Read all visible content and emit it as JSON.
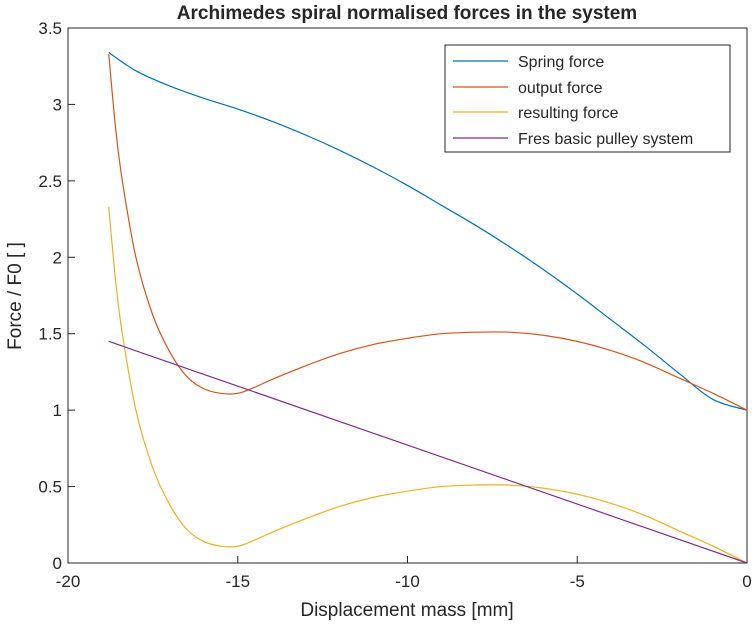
{
  "chart_data": {
    "type": "line",
    "title": "Archimedes spiral normalised forces in the system",
    "xlabel": "Displacement mass [mm]",
    "ylabel": "Force / F0 [ ]",
    "xlim": [
      -20,
      0
    ],
    "ylim": [
      0,
      3.5
    ],
    "xticks": [
      -20,
      -15,
      -10,
      -5,
      0
    ],
    "yticks": [
      0,
      0.5,
      1,
      1.5,
      2,
      2.5,
      3,
      3.5
    ],
    "xtick_labels": [
      "-20",
      "-15",
      "-10",
      "-5",
      "0"
    ],
    "ytick_labels": [
      "0",
      "0.5",
      "1",
      "1.5",
      "2",
      "2.5",
      "3",
      "3.5"
    ],
    "grid": false,
    "legend": "top-right",
    "series": [
      {
        "name": "Spring force",
        "color": "#0072BD",
        "x": [
          -18.8,
          -18.0,
          -17.0,
          -16.0,
          -15.0,
          -14.0,
          -13.0,
          -12.0,
          -11.0,
          -10.0,
          -9.0,
          -8.0,
          -7.0,
          -6.0,
          -5.0,
          -4.0,
          -3.0,
          -2.0,
          -1.0,
          0.0
        ],
        "y": [
          3.34,
          3.22,
          3.12,
          3.04,
          2.97,
          2.89,
          2.8,
          2.7,
          2.59,
          2.47,
          2.34,
          2.21,
          2.07,
          1.92,
          1.76,
          1.59,
          1.42,
          1.24,
          1.07,
          1.0
        ]
      },
      {
        "name": "output force",
        "color": "#D95319",
        "x": [
          -18.8,
          -18.6,
          -18.4,
          -18.0,
          -17.5,
          -17.0,
          -16.5,
          -16.0,
          -15.5,
          -15.0,
          -14.5,
          -14.0,
          -13.0,
          -12.0,
          -11.0,
          -10.0,
          -9.0,
          -8.0,
          -7.0,
          -6.0,
          -5.0,
          -4.0,
          -3.0,
          -2.0,
          -1.0,
          0.0
        ],
        "y": [
          3.33,
          2.85,
          2.5,
          2.0,
          1.62,
          1.38,
          1.22,
          1.14,
          1.11,
          1.11,
          1.15,
          1.2,
          1.29,
          1.37,
          1.43,
          1.47,
          1.5,
          1.51,
          1.51,
          1.49,
          1.45,
          1.39,
          1.31,
          1.21,
          1.11,
          1.0
        ]
      },
      {
        "name": "resulting force",
        "color": "#EDB120",
        "x": [
          -18.8,
          -18.6,
          -18.4,
          -18.0,
          -17.5,
          -17.0,
          -16.5,
          -16.0,
          -15.5,
          -15.0,
          -14.5,
          -14.0,
          -13.0,
          -12.0,
          -11.0,
          -10.0,
          -9.0,
          -8.0,
          -7.0,
          -6.0,
          -5.0,
          -4.0,
          -3.0,
          -2.0,
          -1.0,
          0.0
        ],
        "y": [
          2.33,
          1.85,
          1.5,
          1.0,
          0.62,
          0.38,
          0.22,
          0.14,
          0.11,
          0.11,
          0.15,
          0.2,
          0.29,
          0.37,
          0.43,
          0.47,
          0.5,
          0.51,
          0.51,
          0.49,
          0.45,
          0.39,
          0.31,
          0.21,
          0.11,
          0.0
        ]
      },
      {
        "name": "Fres basic pulley system",
        "color": "#7E2F8E",
        "x": [
          -18.8,
          0.0
        ],
        "y": [
          1.45,
          0.0
        ]
      }
    ]
  }
}
